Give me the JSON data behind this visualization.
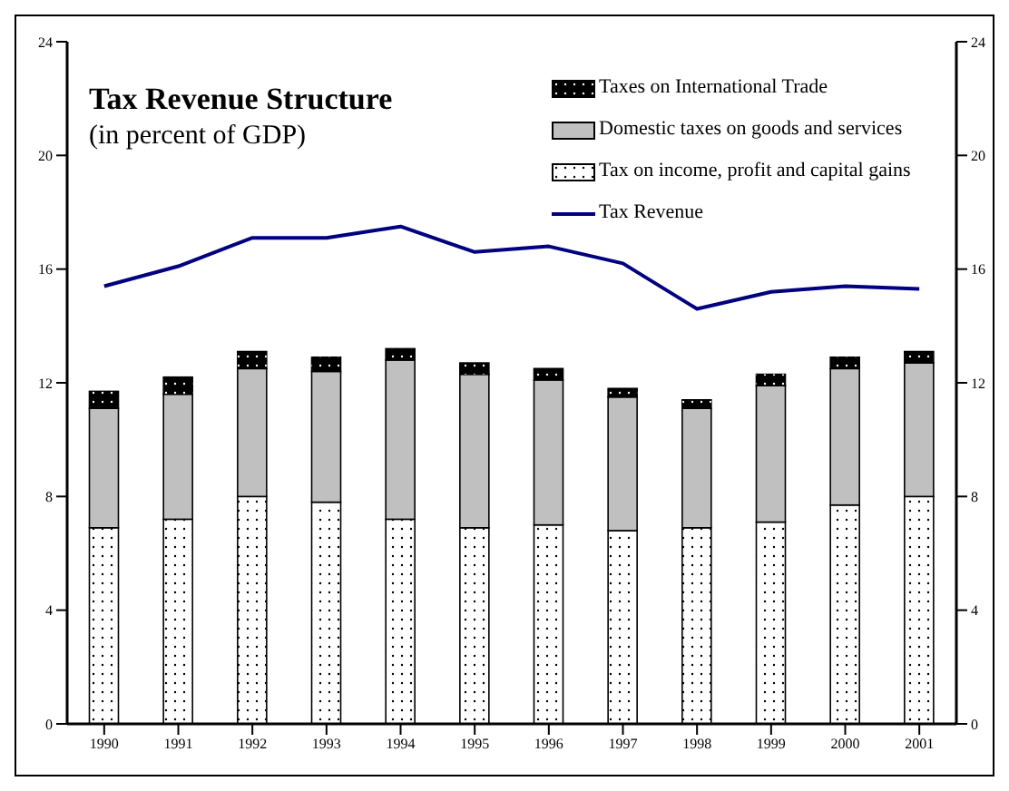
{
  "chart_data": {
    "type": "bar",
    "title": "Tax Revenue Structure",
    "subtitle": "(in percent of GDP)",
    "categories": [
      "1990",
      "1991",
      "1992",
      "1993",
      "1994",
      "1995",
      "1996",
      "1997",
      "1998",
      "1999",
      "2000",
      "2001"
    ],
    "stacked": true,
    "series": [
      {
        "name": "Tax on income, profit and capital gains",
        "color": "#ffffff",
        "values": [
          6.9,
          7.2,
          8.0,
          7.8,
          7.2,
          6.9,
          7.0,
          6.8,
          6.9,
          7.1,
          7.7,
          8.0
        ]
      },
      {
        "name": "Domestic taxes on goods and services",
        "color": "#c0c0c0",
        "values": [
          4.2,
          4.4,
          4.5,
          4.6,
          5.6,
          5.4,
          5.1,
          4.7,
          4.2,
          4.8,
          4.8,
          4.7
        ]
      },
      {
        "name": "Taxes on International Trade",
        "color": "#000000",
        "values": [
          0.6,
          0.6,
          0.6,
          0.5,
          0.4,
          0.4,
          0.4,
          0.3,
          0.3,
          0.4,
          0.4,
          0.4
        ]
      },
      {
        "name": "Tax Revenue",
        "type": "line",
        "color": "#000080",
        "values": [
          15.4,
          16.1,
          17.1,
          17.1,
          17.5,
          16.6,
          16.8,
          16.2,
          14.6,
          15.2,
          15.4,
          15.3
        ]
      }
    ],
    "ylim": [
      0,
      24
    ],
    "yticks": [
      0,
      4,
      8,
      12,
      16,
      20,
      24
    ],
    "y2lim": [
      0,
      24
    ],
    "y2ticks": [
      0,
      4,
      8,
      12,
      16,
      20,
      24
    ],
    "grid": false,
    "legend": "top right",
    "marker": "none"
  }
}
